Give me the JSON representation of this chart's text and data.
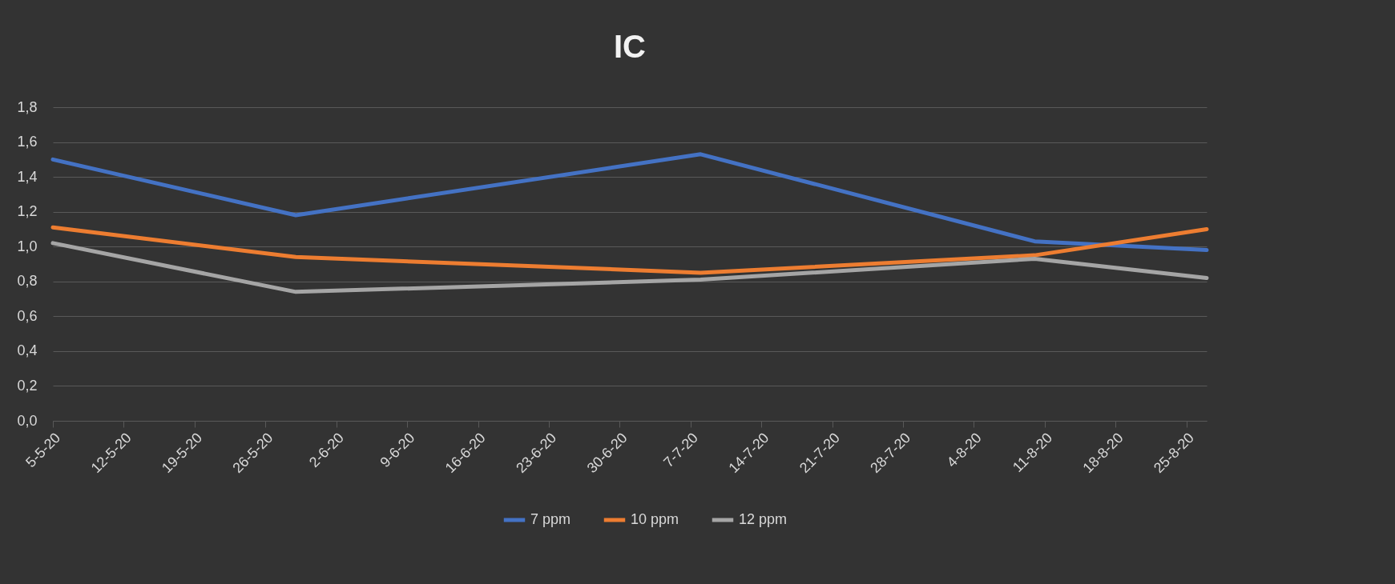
{
  "chart_data": {
    "type": "line",
    "title": "IC",
    "x": [
      "--05-05",
      "--05-29",
      "--07-08",
      "--08-10",
      "--08-27"
    ],
    "series": [
      {
        "name": "7 ppm",
        "color": "#4472c4",
        "values": [
          1.5,
          1.18,
          1.53,
          1.03,
          0.98
        ]
      },
      {
        "name": "10 ppm",
        "color": "#ed7d31",
        "values": [
          1.11,
          0.94,
          0.85,
          0.95,
          1.1
        ]
      },
      {
        "name": "12 ppm",
        "color": "#a5a5a5",
        "values": [
          1.02,
          0.74,
          0.81,
          0.93,
          0.82
        ]
      }
    ],
    "xlim": [
      "--05-05",
      "--08-27"
    ],
    "xticks": [
      {
        "value": "--05-05",
        "label": "5-5-20"
      },
      {
        "value": "--05-12",
        "label": "12-5-20"
      },
      {
        "value": "--05-19",
        "label": "19-5-20"
      },
      {
        "value": "--05-26",
        "label": "26-5-20"
      },
      {
        "value": "--06-02",
        "label": "2-6-20"
      },
      {
        "value": "--06-09",
        "label": "9-6-20"
      },
      {
        "value": "--06-16",
        "label": "16-6-20"
      },
      {
        "value": "--06-23",
        "label": "23-6-20"
      },
      {
        "value": "--06-30",
        "label": "30-6-20"
      },
      {
        "value": "--07-07",
        "label": "7-7-20"
      },
      {
        "value": "--07-14",
        "label": "14-7-20"
      },
      {
        "value": "--07-21",
        "label": "21-7-20"
      },
      {
        "value": "--07-28",
        "label": "28-7-20"
      },
      {
        "value": "--08-04",
        "label": "4-8-20"
      },
      {
        "value": "--08-11",
        "label": "11-8-20"
      },
      {
        "value": "--08-18",
        "label": "18-8-20"
      },
      {
        "value": "--08-25",
        "label": "25-8-20"
      }
    ],
    "ylim": [
      0,
      1.8
    ],
    "yticks": [
      {
        "value": 0,
        "label": "0,0"
      },
      {
        "value": 0.2,
        "label": "0,2"
      },
      {
        "value": 0.4,
        "label": "0,4"
      },
      {
        "value": 0.6,
        "label": "0,6"
      },
      {
        "value": 0.8,
        "label": "0,8"
      },
      {
        "value": 1.0,
        "label": "1,0"
      },
      {
        "value": 1.2,
        "label": "1,2"
      },
      {
        "value": 1.4,
        "label": "1,4"
      },
      {
        "value": 1.6,
        "label": "1,6"
      },
      {
        "value": 1.8,
        "label": "1,8"
      }
    ],
    "grid": "y",
    "legend": "bottom",
    "marker": "none",
    "line_style": "solid"
  }
}
